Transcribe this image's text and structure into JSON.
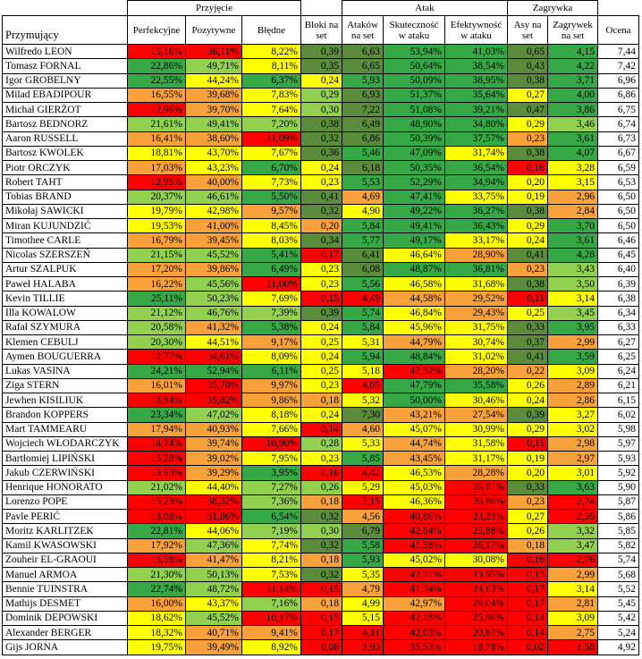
{
  "table": {
    "groups": [
      "Przyjęcie",
      "Atak",
      "Zagrywka"
    ],
    "columns": [
      "Przymujący",
      "Perfekcyjne",
      "Pozytywne",
      "Błędne",
      "Bloki na set",
      "Ataków na set",
      "Skuteczność w ataku",
      "Efektywność w ataku",
      "Asy na set",
      "Zagrywek na set",
      "Ocena"
    ],
    "rows": [
      [
        "Wilfredo LEON",
        "15,16%",
        "36,11%",
        "8,22%",
        "0,39",
        "6,63",
        "53,94%",
        "41,03%",
        "0,65",
        "4,15",
        "7,44"
      ],
      [
        "Tomasz FORNAL",
        "22,86%",
        "49,71%",
        "8,11%",
        "0,35",
        "6,65",
        "50,64%",
        "38,54%",
        "0,43",
        "4,22",
        "7,42"
      ],
      [
        "Igor GROBELNY",
        "22,55%",
        "44,24%",
        "6,37%",
        "0,24",
        "5,93",
        "50,09%",
        "38,95%",
        "0,38",
        "3,71",
        "6,96"
      ],
      [
        "Milad EBADIPOUR",
        "16,55%",
        "39,68%",
        "7,83%",
        "0,29",
        "6,93",
        "51,37%",
        "35,64%",
        "0,27",
        "4,00",
        "6,86"
      ],
      [
        "Michał GIERŻOT",
        "12,96%",
        "39,70%",
        "7,64%",
        "0,30",
        "7,22",
        "51,08%",
        "39,21%",
        "0,47",
        "3,86",
        "6,75"
      ],
      [
        "Bartosz BEDNORZ",
        "21,61%",
        "49,41%",
        "7,20%",
        "0,38",
        "6,49",
        "48,90%",
        "34,80%",
        "0,29",
        "3,46",
        "6,74"
      ],
      [
        "Aaron RUSSELL",
        "16,41%",
        "38,60%",
        "11,09%",
        "0,32",
        "6,86",
        "50,39%",
        "37,57%",
        "0,23",
        "3,61",
        "6,73"
      ],
      [
        "Bartosz KWOLEK",
        "18,81%",
        "43,70%",
        "7,67%",
        "0,36",
        "5,46",
        "47,09%",
        "31,74%",
        "0,38",
        "4,07",
        "6,67"
      ],
      [
        "Piotr ORCZYK",
        "17,03%",
        "43,23%",
        "6,70%",
        "0,24",
        "6,18",
        "50,35%",
        "36,54%",
        "0,16",
        "3,28",
        "6,59"
      ],
      [
        "Robert TAHT",
        "12,95%",
        "40,00%",
        "7,73%",
        "0,23",
        "5,53",
        "52,29%",
        "34,94%",
        "0,20",
        "3,15",
        "6,53"
      ],
      [
        "Tobias BRAND",
        "20,37%",
        "46,61%",
        "5,50%",
        "0,41",
        "4,69",
        "47,41%",
        "33,75%",
        "0,19",
        "2,96",
        "6,50"
      ],
      [
        "Mikołaj SAWICKI",
        "19,79%",
        "42,98%",
        "9,57%",
        "0,32",
        "4,90",
        "49,22%",
        "36,27%",
        "0,38",
        "2,84",
        "6,50"
      ],
      [
        "Miran KUJUNDZIĆ",
        "19,53%",
        "41,00%",
        "8,45%",
        "0,20",
        "5,84",
        "49,41%",
        "36,43%",
        "0,29",
        "3,70",
        "6,50"
      ],
      [
        "Timothee CARLE",
        "16,79%",
        "39,45%",
        "8,03%",
        "0,34",
        "5,77",
        "49,17%",
        "33,17%",
        "0,24",
        "3,61",
        "6,46"
      ],
      [
        "Nicolas SZERSZEŃ",
        "21,15%",
        "45,52%",
        "5,41%",
        "0,17",
        "6,41",
        "46,64%",
        "28,90%",
        "0,41",
        "4,28",
        "6,45"
      ],
      [
        "Artur SZALPUK",
        "17,20%",
        "39,86%",
        "6,49%",
        "0,23",
        "6,08",
        "48,87%",
        "36,81%",
        "0,23",
        "3,43",
        "6,40"
      ],
      [
        "Paweł HALABA",
        "16,22%",
        "45,56%",
        "11,00%",
        "0,23",
        "5,56",
        "46,58%",
        "31,68%",
        "0,38",
        "3,50",
        "6,39"
      ],
      [
        "Kevin TILLIE",
        "25,11%",
        "50,23%",
        "7,69%",
        "0,15",
        "4,49",
        "44,58%",
        "29,52%",
        "0,11",
        "3,14",
        "6,38"
      ],
      [
        "Illa KOWALOW",
        "21,12%",
        "46,76%",
        "7,39%",
        "0,39",
        "5,74",
        "46,84%",
        "29,43%",
        "0,25",
        "3,45",
        "6,34"
      ],
      [
        "Rafał SZYMURA",
        "20,58%",
        "41,32%",
        "5,38%",
        "0,24",
        "5,84",
        "45,96%",
        "31,75%",
        "0,33",
        "3,95",
        "6,33"
      ],
      [
        "Klemen CEBULJ",
        "20,30%",
        "44,51%",
        "9,17%",
        "0,25",
        "5,31",
        "44,79%",
        "30,74%",
        "0,37",
        "2,99",
        "6,27"
      ],
      [
        "Aymen BOUGUERRA",
        "12,77%",
        "34,61%",
        "8,09%",
        "0,24",
        "5,94",
        "48,84%",
        "31,02%",
        "0,41",
        "3,59",
        "6,25"
      ],
      [
        "Lukas VASINA",
        "24,21%",
        "52,94%",
        "6,11%",
        "0,25",
        "5,18",
        "42,52%",
        "28,20%",
        "0,22",
        "3,09",
        "6,24"
      ],
      [
        "Ziga STERN",
        "16,01%",
        "35,70%",
        "9,97%",
        "0,23",
        "4,05",
        "47,79%",
        "35,58%",
        "0,26",
        "2,89",
        "6,21"
      ],
      [
        "Jewhen KISILIUK",
        "13,94%",
        "35,82%",
        "9,86%",
        "0,18",
        "5,32",
        "50,00%",
        "30,46%",
        "0,24",
        "2,86",
        "6,15"
      ],
      [
        "Brandon KOPPERS",
        "23,34%",
        "47,02%",
        "8,18%",
        "0,24",
        "7,30",
        "43,21%",
        "27,54%",
        "0,39",
        "3,27",
        "6,02"
      ],
      [
        "Mart TAMMEARU",
        "17,94%",
        "40,93%",
        "7,66%",
        "0,14",
        "4,60",
        "45,07%",
        "30,99%",
        "0,29",
        "3,02",
        "5,98"
      ],
      [
        "Wojciech WŁODARCZYK",
        "14,74%",
        "39,74%",
        "10,90%",
        "0,28",
        "5,33",
        "44,74%",
        "31,58%",
        "0,11",
        "2,98",
        "5,97"
      ],
      [
        "Bartłomiej LIPIŃSKI",
        "15,28%",
        "39,02%",
        "7,95%",
        "0,23",
        "5,85",
        "43,45%",
        "31,17%",
        "0,19",
        "2,97",
        "5,93"
      ],
      [
        "Jakub CZERWIŃSKI",
        "13,93%",
        "39,29%",
        "3,95%",
        "0,16",
        "4,42",
        "46,53%",
        "28,28%",
        "0,20",
        "3,01",
        "5,92"
      ],
      [
        "Henrique HONORATO",
        "21,02%",
        "44,40%",
        "7,27%",
        "0,26",
        "5,29",
        "45,03%",
        "26,81%",
        "0,33",
        "3,63",
        "5,90"
      ],
      [
        "Lorenzo POPE",
        "15,23%",
        "38,32%",
        "7,36%",
        "0,18",
        "3,15",
        "46,36%",
        "26,86%",
        "0,23",
        "2,24",
        "5,87"
      ],
      [
        "Pavle PERIĆ",
        "13,08%",
        "31,86%",
        "6,54%",
        "0,32",
        "4,56",
        "40,86%",
        "23,23%",
        "0,27",
        "2,39",
        "5,86"
      ],
      [
        "Moritz KARLITZEK",
        "22,81%",
        "44,06%",
        "7,19%",
        "0,30",
        "6,79",
        "42,64%",
        "25,88%",
        "0,26",
        "3,32",
        "5,85"
      ],
      [
        "Kamil KWASOWSKI",
        "17,92%",
        "47,36%",
        "7,74%",
        "0,32",
        "5,58",
        "41,58%",
        "26,17%",
        "0,18",
        "3,47",
        "5,82"
      ],
      [
        "Zouheir EL-GRAOUI",
        "15,58%",
        "41,47%",
        "8,21%",
        "0,18",
        "5,93",
        "45,02%",
        "30,08%",
        "0,16",
        "2,76",
        "5,74"
      ],
      [
        "Manuel ARMOA",
        "21,30%",
        "50,13%",
        "7,53%",
        "0,32",
        "5,35",
        "42,31%",
        "23,95%",
        "0,13",
        "2,99",
        "5,68"
      ],
      [
        "Bennie TUINSTRA",
        "22,74%",
        "48,72%",
        "11,14%",
        "0,15",
        "4,79",
        "41,34%",
        "24,63%",
        "0,17",
        "3,14",
        "5,52"
      ],
      [
        "Mathijs DESMET",
        "16,00%",
        "43,37%",
        "7,16%",
        "0,18",
        "4,99",
        "42,97%",
        "26,04%",
        "0,17",
        "2,81",
        "5,45"
      ],
      [
        "Dominik DEPOWSKI",
        "18,62%",
        "45,52%",
        "10,17%",
        "0,15",
        "5,15",
        "42,18%",
        "25,96%",
        "0,14",
        "3,09",
        "5,42"
      ],
      [
        "Alexander BERGER",
        "18,32%",
        "40,71%",
        "9,41%",
        "0,17",
        "4,11",
        "42,03%",
        "20,87%",
        "0,14",
        "2,75",
        "5,24"
      ],
      [
        "Gijs JORNA",
        "19,75%",
        "39,49%",
        "8,92%",
        "0,08",
        "3,93",
        "35,53%",
        "18,78%",
        "0,02",
        "1,58",
        "4,92"
      ]
    ],
    "cell_colors": [
      [
        "#ff0000",
        "#ff0000",
        "#ffff00",
        "#5b8c3c",
        "#5b8c3c",
        "#36a946",
        "#36a946",
        "#5b8c3c",
        "#36a946"
      ],
      [
        "#36a946",
        "#92d050",
        "#ffff00",
        "#5b8c3c",
        "#5b8c3c",
        "#36a946",
        "#36a946",
        "#5b8c3c",
        "#36a946"
      ],
      [
        "#36a946",
        "#ffff00",
        "#36a946",
        "#ffff00",
        "#36a946",
        "#36a946",
        "#36a946",
        "#5b8c3c",
        "#36a946"
      ],
      [
        "#f9a13a",
        "#f9a13a",
        "#ffff00",
        "#92d050",
        "#5b8c3c",
        "#36a946",
        "#36a946",
        "#ffff00",
        "#36a946"
      ],
      [
        "#ff0000",
        "#f9a13a",
        "#ffff00",
        "#92d050",
        "#5b8c3c",
        "#36a946",
        "#36a946",
        "#5b8c3c",
        "#36a946"
      ],
      [
        "#92d050",
        "#92d050",
        "#92d050",
        "#5b8c3c",
        "#5b8c3c",
        "#36a946",
        "#36a946",
        "#ffff00",
        "#92d050"
      ],
      [
        "#f9a13a",
        "#f9a13a",
        "#ff0000",
        "#5b8c3c",
        "#5b8c3c",
        "#36a946",
        "#36a946",
        "#f9a13a",
        "#36a946"
      ],
      [
        "#ffff00",
        "#ffff00",
        "#ffff00",
        "#5b8c3c",
        "#36a946",
        "#36a946",
        "#ffff00",
        "#5b8c3c",
        "#36a946"
      ],
      [
        "#f9a13a",
        "#ffff00",
        "#36a946",
        "#ffff00",
        "#5b8c3c",
        "#36a946",
        "#36a946",
        "#ff0000",
        "#ffff00"
      ],
      [
        "#ff0000",
        "#f9a13a",
        "#ffff00",
        "#ffff00",
        "#36a946",
        "#36a946",
        "#36a946",
        "#ffff00",
        "#ffff00"
      ],
      [
        "#92d050",
        "#92d050",
        "#36a946",
        "#5b8c3c",
        "#f9a13a",
        "#36a946",
        "#ffff00",
        "#ffff00",
        "#f9a13a"
      ],
      [
        "#ffff00",
        "#ffff00",
        "#f9a13a",
        "#5b8c3c",
        "#ffff00",
        "#36a946",
        "#36a946",
        "#5b8c3c",
        "#f9a13a"
      ],
      [
        "#ffff00",
        "#f9a13a",
        "#ffff00",
        "#f9a13a",
        "#36a946",
        "#36a946",
        "#36a946",
        "#ffff00",
        "#36a946"
      ],
      [
        "#f9a13a",
        "#f9a13a",
        "#ffff00",
        "#5b8c3c",
        "#36a946",
        "#36a946",
        "#ffff00",
        "#ffff00",
        "#36a946"
      ],
      [
        "#92d050",
        "#92d050",
        "#36a946",
        "#ff0000",
        "#5b8c3c",
        "#ffff00",
        "#f9a13a",
        "#5b8c3c",
        "#36a946"
      ],
      [
        "#f9a13a",
        "#f9a13a",
        "#36a946",
        "#ffff00",
        "#5b8c3c",
        "#36a946",
        "#36a946",
        "#f9a13a",
        "#92d050"
      ],
      [
        "#f9a13a",
        "#92d050",
        "#ff0000",
        "#ffff00",
        "#36a946",
        "#ffff00",
        "#ffff00",
        "#5b8c3c",
        "#92d050"
      ],
      [
        "#36a946",
        "#92d050",
        "#ffff00",
        "#ff0000",
        "#ff0000",
        "#f9a13a",
        "#f9a13a",
        "#ff0000",
        "#ffff00"
      ],
      [
        "#92d050",
        "#92d050",
        "#92d050",
        "#5b8c3c",
        "#36a946",
        "#ffff00",
        "#f9a13a",
        "#ffff00",
        "#92d050"
      ],
      [
        "#92d050",
        "#f9a13a",
        "#36a946",
        "#ffff00",
        "#36a946",
        "#ffff00",
        "#ffff00",
        "#5b8c3c",
        "#36a946"
      ],
      [
        "#92d050",
        "#ffff00",
        "#f9a13a",
        "#ffff00",
        "#ffff00",
        "#f9a13a",
        "#ffff00",
        "#5b8c3c",
        "#f9a13a"
      ],
      [
        "#ff0000",
        "#ff0000",
        "#ffff00",
        "#ffff00",
        "#36a946",
        "#36a946",
        "#ffff00",
        "#5b8c3c",
        "#36a946"
      ],
      [
        "#36a946",
        "#36a946",
        "#36a946",
        "#ffff00",
        "#ffff00",
        "#ff0000",
        "#f9a13a",
        "#f9a13a",
        "#ffff00"
      ],
      [
        "#f9a13a",
        "#ff0000",
        "#f9a13a",
        "#ffff00",
        "#ff0000",
        "#36a946",
        "#36a946",
        "#ffff00",
        "#f9a13a"
      ],
      [
        "#ff0000",
        "#ff0000",
        "#f9a13a",
        "#f9a13a",
        "#ffff00",
        "#36a946",
        "#ffff00",
        "#ffff00",
        "#f9a13a"
      ],
      [
        "#36a946",
        "#92d050",
        "#ffff00",
        "#ffff00",
        "#5b8c3c",
        "#f9a13a",
        "#f9a13a",
        "#5b8c3c",
        "#ffff00"
      ],
      [
        "#f9a13a",
        "#f9a13a",
        "#ffff00",
        "#ff0000",
        "#f9a13a",
        "#ffff00",
        "#ffff00",
        "#ffff00",
        "#ffff00"
      ],
      [
        "#ff0000",
        "#f9a13a",
        "#ff0000",
        "#92d050",
        "#ffff00",
        "#f9a13a",
        "#ffff00",
        "#ff0000",
        "#f9a13a"
      ],
      [
        "#ff0000",
        "#f9a13a",
        "#ffff00",
        "#ffff00",
        "#36a946",
        "#f9a13a",
        "#ffff00",
        "#ffff00",
        "#f9a13a"
      ],
      [
        "#ff0000",
        "#f9a13a",
        "#36a946",
        "#ff0000",
        "#ff0000",
        "#ffff00",
        "#f9a13a",
        "#ffff00",
        "#ffff00"
      ],
      [
        "#92d050",
        "#ffff00",
        "#92d050",
        "#92d050",
        "#ffff00",
        "#ffff00",
        "#ff0000",
        "#5b8c3c",
        "#36a946"
      ],
      [
        "#ff0000",
        "#ff0000",
        "#92d050",
        "#f9a13a",
        "#ff0000",
        "#ffff00",
        "#ff0000",
        "#f9a13a",
        "#ff0000"
      ],
      [
        "#ff0000",
        "#ff0000",
        "#36a946",
        "#5b8c3c",
        "#f9a13a",
        "#ff0000",
        "#ff0000",
        "#ffff00",
        "#ff0000"
      ],
      [
        "#36a946",
        "#ffff00",
        "#92d050",
        "#92d050",
        "#5b8c3c",
        "#ff0000",
        "#ff0000",
        "#ffff00",
        "#92d050"
      ],
      [
        "#f9a13a",
        "#92d050",
        "#ffff00",
        "#5b8c3c",
        "#36a946",
        "#ff0000",
        "#ff0000",
        "#f9a13a",
        "#92d050"
      ],
      [
        "#ff0000",
        "#f9a13a",
        "#ffff00",
        "#f9a13a",
        "#36a946",
        "#ffff00",
        "#ffff00",
        "#ff0000",
        "#ff0000"
      ],
      [
        "#92d050",
        "#92d050",
        "#ffff00",
        "#5b8c3c",
        "#ffff00",
        "#ff0000",
        "#ff0000",
        "#ff0000",
        "#f9a13a"
      ],
      [
        "#36a946",
        "#92d050",
        "#ff0000",
        "#ff0000",
        "#f9a13a",
        "#ff0000",
        "#ff0000",
        "#ff0000",
        "#ffff00"
      ],
      [
        "#f9a13a",
        "#ffff00",
        "#92d050",
        "#f9a13a",
        "#ffff00",
        "#f9a13a",
        "#ff0000",
        "#ff0000",
        "#f9a13a"
      ],
      [
        "#ffff00",
        "#92d050",
        "#ff0000",
        "#ff0000",
        "#ffff00",
        "#ff0000",
        "#ff0000",
        "#ff0000",
        "#ffff00"
      ],
      [
        "#ffff00",
        "#f9a13a",
        "#f9a13a",
        "#ff0000",
        "#ff0000",
        "#ff0000",
        "#ff0000",
        "#ff0000",
        "#f9a13a"
      ],
      [
        "#ffff00",
        "#f9a13a",
        "#ffff00",
        "#ff0000",
        "#ff0000",
        "#ff0000",
        "#ff0000",
        "#ff0000",
        "#ff0000"
      ]
    ]
  }
}
